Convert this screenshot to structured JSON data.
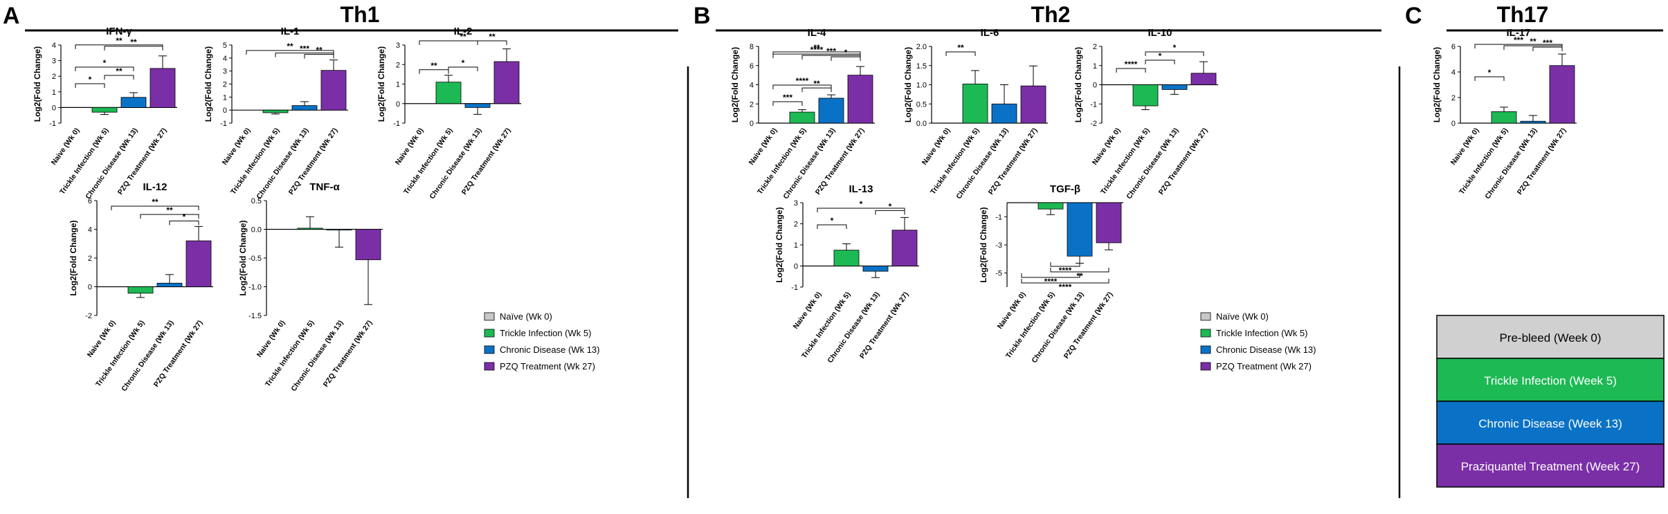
{
  "panels": [
    {
      "letter": "A",
      "title": "Th1"
    },
    {
      "letter": "B",
      "title": "Th2"
    },
    {
      "letter": "C",
      "title": "Th17"
    }
  ],
  "colors": {
    "naive": "#c8c8c8",
    "trickle": "#1db954",
    "chronic": "#0a72c6",
    "pzq": "#7a2fa6"
  },
  "legend": {
    "entries": [
      "Naïve (Wk 0)",
      "Trickle Infection (Wk 5)",
      "Chronic Disease (Wk 13)",
      "PZQ Treatment (Wk 27)"
    ]
  },
  "timeline_boxes": [
    "Pre-bleed (Week 0)",
    "Trickle Infection (Week 5)",
    "Chronic Disease (Week 13)",
    "Praziquantel Treatment (Week 27)"
  ],
  "chart_data": [
    {
      "type": "bar",
      "title": "IFN-γ",
      "ylabel": "Log2(Fold Change)",
      "categories": [
        "Naive (Wk 0)",
        "Trickle Infection (Wk 5)",
        "Chronic Disease (Wk 13)",
        "PZQ Treatment (Wk 27)"
      ],
      "values": [
        0,
        -0.3,
        0.65,
        2.5
      ],
      "errors": [
        0,
        0.15,
        0.3,
        0.8
      ],
      "ylim": [
        -1,
        4
      ],
      "yticks": [
        -1,
        0,
        1,
        2,
        3,
        4
      ],
      "significance": [
        {
          "from": 0,
          "to": 1,
          "label": "*"
        },
        {
          "from": 1,
          "to": 2,
          "label": "**"
        },
        {
          "from": 0,
          "to": 2,
          "label": "*"
        },
        {
          "from": 1,
          "to": 3,
          "label": "**"
        },
        {
          "from": 0,
          "to": 3,
          "label": "**"
        }
      ]
    },
    {
      "type": "bar",
      "title": "IL-1",
      "ylabel": "Log2(Fold Change)",
      "categories": [
        "Naive (Wk 0)",
        "Trickle Infection (Wk 5)",
        "Chronic Disease (Wk 13)",
        "PZQ Treatment (Wk 27)"
      ],
      "values": [
        0,
        -0.2,
        0.35,
        3.05
      ],
      "errors": [
        0,
        0.1,
        0.3,
        0.8
      ],
      "ylim": [
        -1,
        5
      ],
      "yticks": [
        -1,
        0,
        1,
        2,
        3,
        4,
        5
      ],
      "significance": [
        {
          "from": 2,
          "to": 3,
          "label": "**"
        },
        {
          "from": 1,
          "to": 3,
          "label": "***"
        },
        {
          "from": 0,
          "to": 3,
          "label": "**"
        }
      ]
    },
    {
      "type": "bar",
      "title": "IL-2",
      "ylabel": "Log2(Fold Change)",
      "categories": [
        "Naive (Wk 0)",
        "Trickle Infection (Wk 5)",
        "Chronic Disease (Wk 13)",
        "PZQ Treatment (Wk 27)"
      ],
      "values": [
        0,
        1.1,
        -0.2,
        2.15
      ],
      "errors": [
        0,
        0.35,
        0.35,
        0.65
      ],
      "ylim": [
        -1,
        3
      ],
      "yticks": [
        -1,
        0,
        1,
        2,
        3
      ],
      "significance": [
        {
          "from": 0,
          "to": 1,
          "label": "**"
        },
        {
          "from": 1,
          "to": 2,
          "label": "*"
        },
        {
          "from": 2,
          "to": 3,
          "label": "**"
        },
        {
          "from": 0,
          "to": 3,
          "label": "**"
        }
      ]
    },
    {
      "type": "bar",
      "title": "IL-12",
      "ylabel": "Log2(Fold Change)",
      "categories": [
        "Naive (Wk 0)",
        "Trickle Infection (Wk 5)",
        "Chronic Disease (Wk 13)",
        "PZQ Treatment (Wk 27)"
      ],
      "values": [
        0,
        -0.45,
        0.25,
        3.2
      ],
      "errors": [
        0,
        0.3,
        0.6,
        1.0
      ],
      "ylim": [
        -2,
        6
      ],
      "yticks": [
        -2,
        0,
        2,
        4,
        6
      ],
      "significance": [
        {
          "from": 2,
          "to": 3,
          "label": "*"
        },
        {
          "from": 1,
          "to": 3,
          "label": "**"
        },
        {
          "from": 0,
          "to": 3,
          "label": "**"
        }
      ]
    },
    {
      "type": "bar",
      "title": "TNF-α",
      "ylabel": "Log2(Fold Change)",
      "categories": [
        "Naive (Wk 0)",
        "Trickle Infection (Wk 5)",
        "Chronic Disease (Wk 13)",
        "PZQ Treatment (Wk 27)"
      ],
      "values": [
        0,
        0.02,
        -0.01,
        -0.53
      ],
      "errors": [
        0,
        0.2,
        0.3,
        0.78
      ],
      "ylim": [
        -1.5,
        0.5
      ],
      "yticks": [
        -1.5,
        -1.0,
        -0.5,
        0.0,
        0.5
      ],
      "significance": []
    },
    {
      "type": "bar",
      "title": "IL-4",
      "ylabel": "Log2(Fold Change)",
      "categories": [
        "Naive (Wk 0)",
        "Trickle Infection (Wk 5)",
        "Chronic Disease (Wk 13)",
        "PZQ Treatment (Wk 27)"
      ],
      "values": [
        0,
        1.15,
        2.6,
        5.0
      ],
      "errors": [
        0,
        0.25,
        0.35,
        0.9
      ],
      "ylim": [
        0,
        8
      ],
      "yticks": [
        0,
        2,
        4,
        6,
        8
      ],
      "significance": [
        {
          "from": 0,
          "to": 1,
          "label": "***"
        },
        {
          "from": 1,
          "to": 2,
          "label": "**"
        },
        {
          "from": 0,
          "to": 2,
          "label": "****"
        },
        {
          "from": 2,
          "to": 3,
          "label": "*"
        },
        {
          "from": 1,
          "to": 3,
          "label": "***"
        },
        {
          "from": 0,
          "to": 3,
          "label": "****"
        },
        {
          "from": 0,
          "to": 3,
          "label": "**"
        }
      ]
    },
    {
      "type": "bar",
      "title": "IL-6",
      "ylabel": "Log2(Fold Change)",
      "categories": [
        "Naive (Wk 0)",
        "Trickle Infection (Wk 5)",
        "Chronic Disease (Wk 13)",
        "PZQ Treatment (Wk 27)"
      ],
      "values": [
        0,
        1.02,
        0.5,
        0.97
      ],
      "errors": [
        0,
        0.35,
        0.5,
        0.52
      ],
      "ylim": [
        0,
        2.0
      ],
      "yticks": [
        0.0,
        0.5,
        1.0,
        1.5,
        2.0
      ],
      "significance": [
        {
          "from": 0,
          "to": 1,
          "label": "**"
        }
      ]
    },
    {
      "type": "bar",
      "title": "IL-10",
      "ylabel": "Log2(Fold Change)",
      "categories": [
        "Naive (Wk 0)",
        "Trickle Infection (Wk 5)",
        "Chronic Disease (Wk 13)",
        "PZQ Treatment (Wk 27)"
      ],
      "values": [
        0,
        -1.1,
        -0.25,
        0.6
      ],
      "errors": [
        0,
        0.2,
        0.25,
        0.6
      ],
      "ylim": [
        -2,
        2
      ],
      "yticks": [
        -2,
        -1,
        0,
        1,
        2
      ],
      "significance": [
        {
          "from": 0,
          "to": 1,
          "label": "****"
        },
        {
          "from": 1,
          "to": 2,
          "label": "*"
        },
        {
          "from": 1,
          "to": 3,
          "label": "*"
        }
      ]
    },
    {
      "type": "bar",
      "title": "IL-13",
      "ylabel": "Log2(Fold Change)",
      "categories": [
        "Naive (Wk 0)",
        "Trickle Infection (Wk 5)",
        "Chronic Disease (Wk 13)",
        "PZQ Treatment (Wk 27)"
      ],
      "values": [
        0,
        0.75,
        -0.25,
        1.7
      ],
      "errors": [
        0,
        0.3,
        0.3,
        0.6
      ],
      "ylim": [
        -1,
        3
      ],
      "yticks": [
        -1,
        0,
        1,
        2,
        3
      ],
      "significance": [
        {
          "from": 0,
          "to": 1,
          "label": "*"
        },
        {
          "from": 2,
          "to": 3,
          "label": "*"
        },
        {
          "from": 0,
          "to": 3,
          "label": "*"
        }
      ]
    },
    {
      "type": "bar",
      "title": "TGF-β",
      "ylabel": "Log2(Fold Change)",
      "categories": [
        "Naive (Wk 0)",
        "Trickle Infection (Wk 5)",
        "Chronic Disease (Wk 13)",
        "PZQ Treatment (Wk 27)"
      ],
      "values": [
        0,
        -0.45,
        -3.8,
        -2.85
      ],
      "errors": [
        0,
        0.4,
        0.5,
        0.5
      ],
      "ylim": [
        -6,
        0
      ],
      "yticks": [
        -1,
        -3,
        -5
      ],
      "significance": [
        {
          "from": 1,
          "to": 2,
          "label": "****"
        },
        {
          "from": 1,
          "to": 3,
          "label": "**"
        },
        {
          "from": 0,
          "to": 2,
          "label": "****"
        },
        {
          "from": 0,
          "to": 3,
          "label": "****"
        }
      ]
    },
    {
      "type": "bar",
      "title": "IL-17",
      "ylabel": "Log2(Fold Change)",
      "categories": [
        "Naive (Wk 0)",
        "Trickle Infection (Wk 5)",
        "Chronic Disease (Wk 13)",
        "PZQ Treatment (Wk 27)"
      ],
      "values": [
        0,
        0.9,
        0.15,
        4.5
      ],
      "errors": [
        0,
        0.35,
        0.45,
        0.9
      ],
      "ylim": [
        0,
        6
      ],
      "yticks": [
        0,
        2,
        4,
        6
      ],
      "significance": [
        {
          "from": 0,
          "to": 1,
          "label": "*"
        },
        {
          "from": 2,
          "to": 3,
          "label": "***"
        },
        {
          "from": 1,
          "to": 3,
          "label": "**"
        },
        {
          "from": 0,
          "to": 3,
          "label": "***"
        }
      ]
    }
  ]
}
